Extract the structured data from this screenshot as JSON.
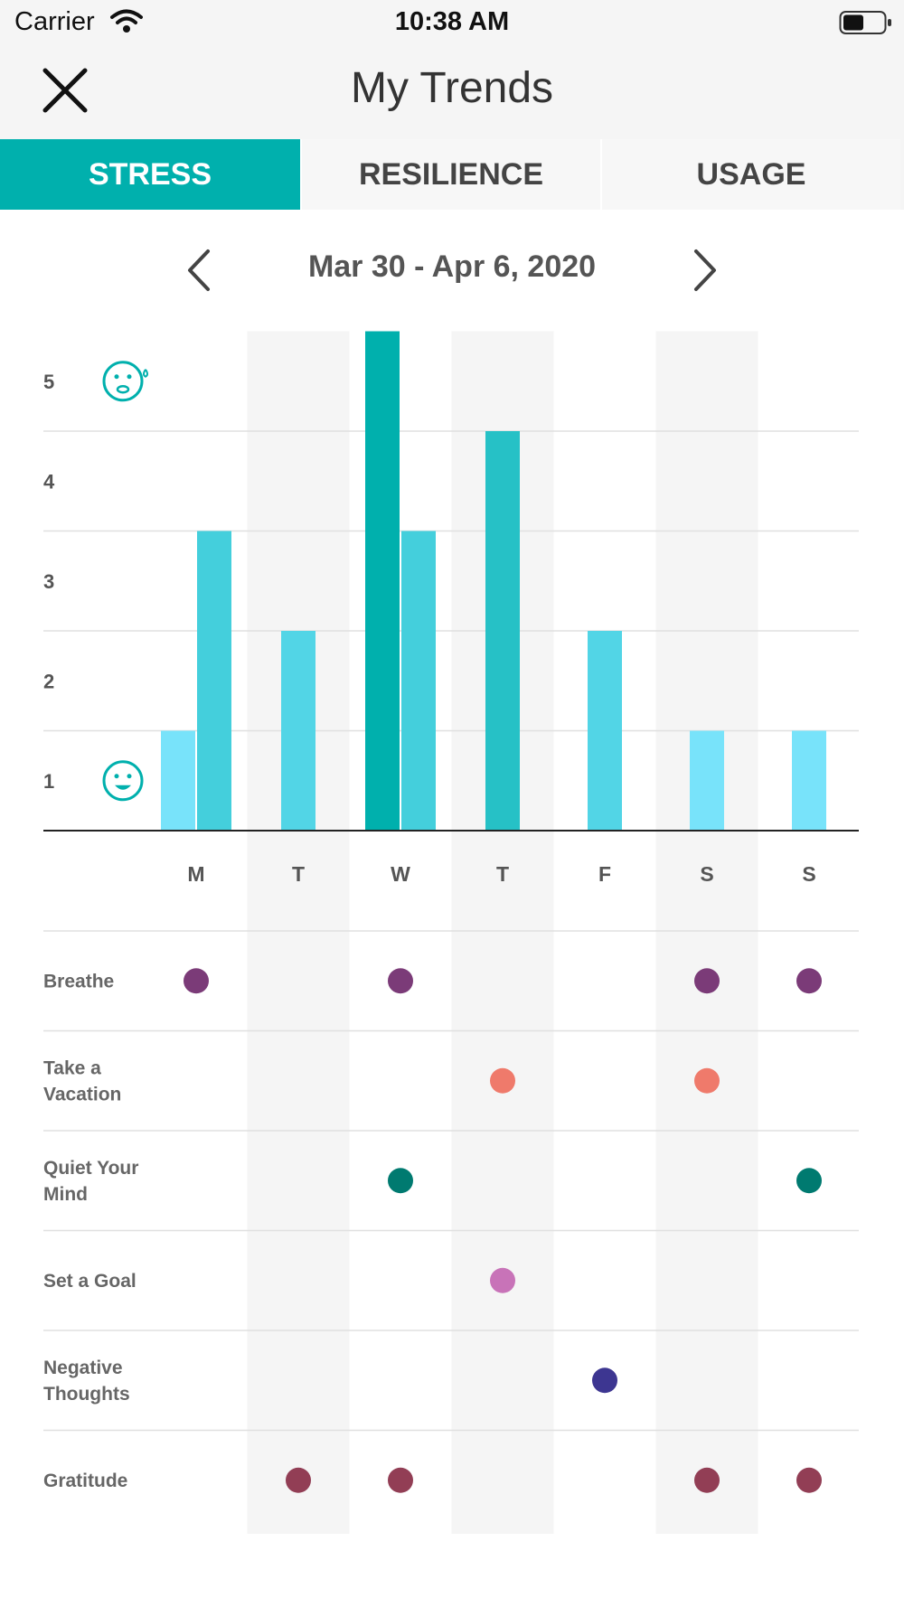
{
  "status": {
    "carrier": "Carrier",
    "time": "10:38 AM"
  },
  "nav": {
    "title": "My Trends",
    "close_icon": "close-icon"
  },
  "tabs": [
    {
      "label": "STRESS",
      "active": true
    },
    {
      "label": "RESILIENCE",
      "active": false
    },
    {
      "label": "USAGE",
      "active": false
    }
  ],
  "date_range": "Mar 30 - Apr 6, 2020",
  "colors": {
    "accent": "#00b0ad",
    "level1": "#78e3fa",
    "level2": "#52d5e6",
    "level3": "#44cfdc",
    "level4": "#26c1c6",
    "level5": "#00b0ad",
    "stripe": "#f5f5f5"
  },
  "chart_data": {
    "type": "bar",
    "ylim": [
      0,
      5
    ],
    "y_ticks": [
      "1",
      "2",
      "3",
      "4",
      "5"
    ],
    "y_icons": {
      "1": "happy-face-icon",
      "5": "stressed-face-icon"
    },
    "days": [
      {
        "label": "M",
        "values": [
          1,
          3
        ]
      },
      {
        "label": "T",
        "values": [
          2
        ]
      },
      {
        "label": "W",
        "values": [
          5,
          3
        ]
      },
      {
        "label": "T",
        "values": [
          4
        ]
      },
      {
        "label": "F",
        "values": [
          2
        ]
      },
      {
        "label": "S",
        "values": [
          1
        ]
      },
      {
        "label": "S",
        "values": [
          1
        ]
      }
    ]
  },
  "activities": [
    {
      "name": "Breathe",
      "lines": [
        "Breathe"
      ],
      "color": "#7b3b78",
      "days": [
        0,
        2,
        5,
        6
      ]
    },
    {
      "name": "Take a Vacation",
      "lines": [
        "Take a",
        "Vacation"
      ],
      "color": "#ef7a6b",
      "days": [
        3,
        5
      ]
    },
    {
      "name": "Quiet Your Mind",
      "lines": [
        "Quiet Your",
        "Mind"
      ],
      "color": "#007a70",
      "days": [
        2,
        6
      ]
    },
    {
      "name": "Set a Goal",
      "lines": [
        "Set a Goal"
      ],
      "color": "#c873b8",
      "days": [
        3
      ]
    },
    {
      "name": "Negative Thoughts",
      "lines": [
        "Negative",
        "Thoughts"
      ],
      "color": "#3d3691",
      "days": [
        4
      ]
    },
    {
      "name": "Gratitude",
      "lines": [
        "Gratitude"
      ],
      "color": "#923e55",
      "days": [
        1,
        2,
        5,
        6
      ]
    }
  ]
}
